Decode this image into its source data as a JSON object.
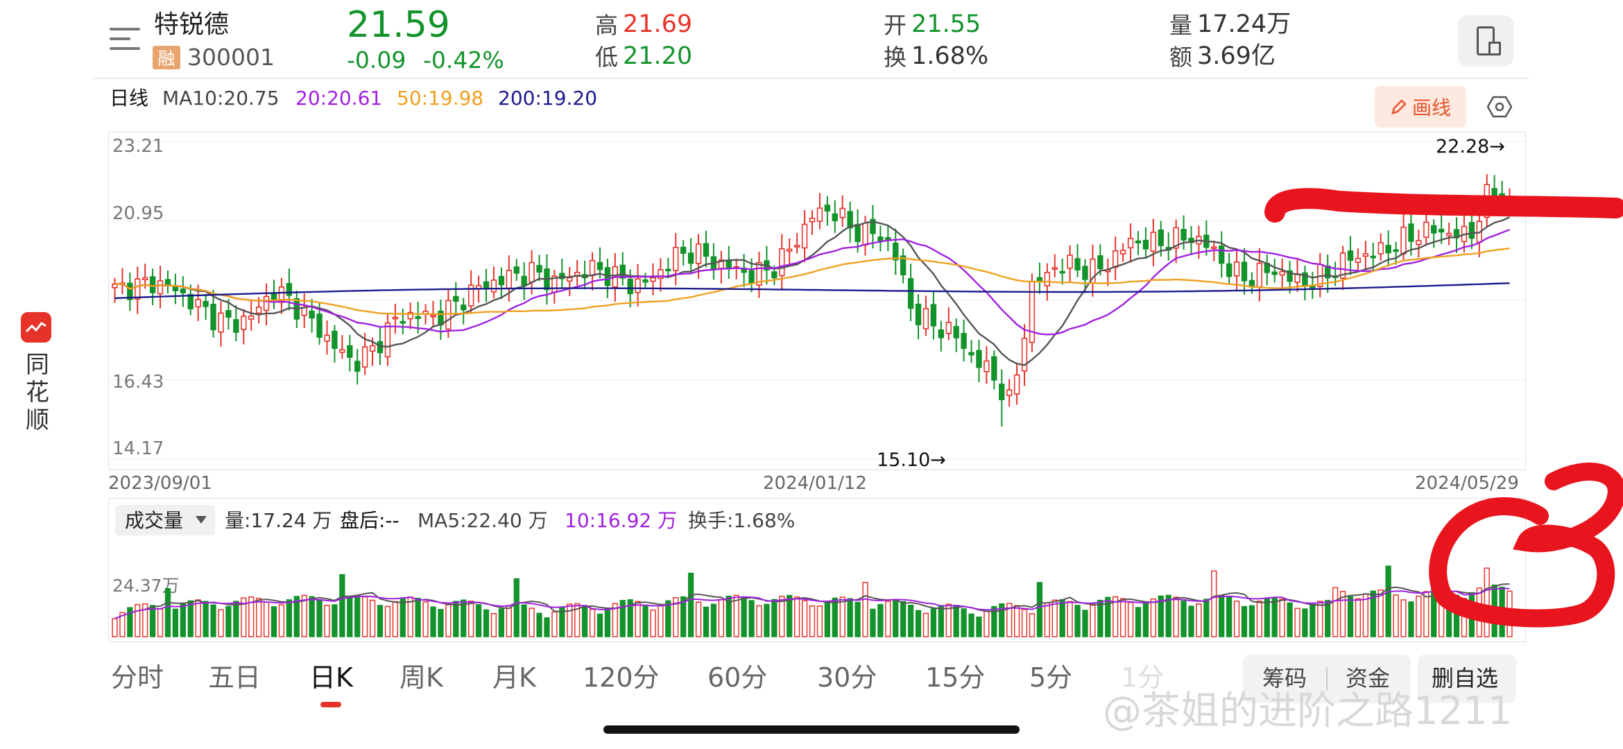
{
  "stock": {
    "name": "特锐德",
    "badge": "融",
    "code": "300001",
    "price": "21.59",
    "change": "-0.09",
    "change_pct": "-0.42%",
    "high_label": "高",
    "high": "21.69",
    "low_label": "低",
    "low": "21.20",
    "open_label": "开",
    "open": "21.55",
    "turnover_label": "换",
    "turnover": "1.68%",
    "volume_label": "量",
    "volume": "17.24万",
    "amount_label": "额",
    "amount": "3.69亿"
  },
  "ma_legend": {
    "period": "日线",
    "ma10": "MA10:20.75",
    "ma20": "20:20.61",
    "ma50": "50:19.98",
    "ma200": "200:19.20"
  },
  "draw_button": "画线",
  "price_axis": [
    "23.21",
    "20.95",
    "16.43",
    "14.17"
  ],
  "markers": {
    "high": "22.28→",
    "low": "15.10→"
  },
  "dates": [
    "2023/09/01",
    "2024/01/12",
    "2024/05/29"
  ],
  "volume_bar": {
    "indicator": "成交量",
    "vol": "量:17.24 万",
    "after": "盘后:--",
    "ma5": "MA5:22.40 万",
    "ma10": "10:16.92 万",
    "turnover": "换手:1.68%",
    "axis": "24.37万"
  },
  "tabs": [
    "分时",
    "五日",
    "日K",
    "周K",
    "月K",
    "120分",
    "60分",
    "30分",
    "15分",
    "5分",
    "1分"
  ],
  "active_tab": "日K",
  "buttons": {
    "chips": "筹码",
    "funds": "资金",
    "remove": "删自选"
  },
  "side_app": {
    "name": "同花顺"
  },
  "watermark": "@茶姐的进阶之路1211",
  "colors": {
    "up": "#e6332a",
    "down": "#13932b",
    "ma10": "#555555",
    "ma20": "#a020e0",
    "ma50": "#f0a020",
    "ma200": "#1a1a8c",
    "annotation": "#e8141e"
  },
  "chart_data": {
    "type": "candlestick",
    "price_range": [
      14.17,
      23.21
    ],
    "marked_high": 22.28,
    "marked_low": 15.1,
    "x_labels": [
      "2023/09/01",
      "2024/01/12",
      "2024/05/29"
    ],
    "close_path": [
      19.0,
      19.1,
      19.2,
      19.0,
      18.6,
      18.2,
      18.0,
      18.3,
      19.0,
      18.6,
      18.0,
      17.4,
      16.9,
      17.3,
      18.1,
      18.3,
      18.2,
      18.5,
      19.0,
      19.2,
      19.4,
      19.5,
      19.2,
      19.4,
      19.6,
      19.4,
      19.1,
      19.3,
      19.9,
      20.1,
      19.8,
      19.6,
      19.4,
      19.6,
      20.2,
      21.1,
      21.3,
      20.7,
      20.6,
      20.3,
      18.4,
      18.0,
      17.8,
      17.1,
      16.6,
      15.7,
      19.0,
      19.6,
      19.7,
      19.5,
      19.8,
      20.4,
      20.3,
      20.4,
      20.5,
      20.2,
      19.5,
      19.3,
      19.6,
      19.3,
      19.2,
      19.5,
      19.9,
      20.0,
      20.2,
      20.5,
      20.7,
      20.6,
      20.5,
      21.8,
      21.59
    ],
    "ma_series": [
      {
        "name": "MA10",
        "last": 20.75
      },
      {
        "name": "20",
        "last": 20.61
      },
      {
        "name": "50",
        "last": 19.98
      },
      {
        "name": "200",
        "last": 19.2
      }
    ],
    "volume": {
      "last": "17.24万",
      "ma5": "22.40万",
      "ma10": "16.92万",
      "axis_label": "24.37万"
    }
  }
}
